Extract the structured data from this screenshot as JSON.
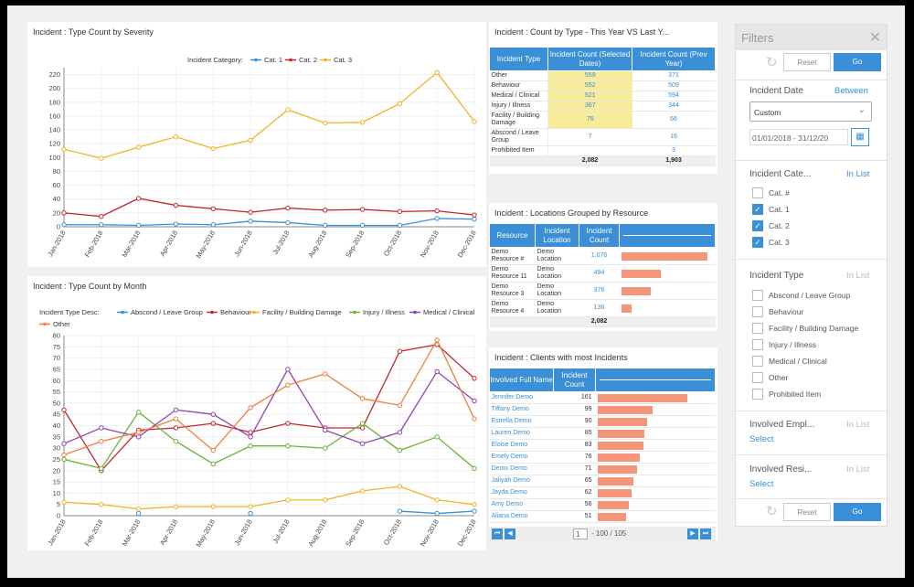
{
  "chart1": {
    "title": "Incident : Type Count by Severity",
    "legend_prefix": "Incident Category:"
  },
  "chart2": {
    "title": "Incident : Type Count by Month",
    "legend_prefix": "Incident Type Desc:"
  },
  "chart_data": [
    {
      "type": "line",
      "title": "Incident : Type Count by Severity",
      "legend_title": "Incident Category:",
      "categories": [
        "Jan-2018",
        "Feb-2018",
        "Mar-2018",
        "Apr-2018",
        "May-2018",
        "Jun-2018",
        "Jul-2018",
        "Aug-2018",
        "Sep-2018",
        "Oct-2018",
        "Nov-2018",
        "Dec-2018"
      ],
      "ylim": [
        0,
        230
      ],
      "yticks": [
        0,
        20,
        40,
        60,
        80,
        100,
        120,
        140,
        160,
        180,
        200,
        220
      ],
      "legend_position": "top-center",
      "grid": true,
      "series": [
        {
          "name": "Cat. 1",
          "color": "#3a8fd6",
          "values": [
            3,
            3,
            2,
            4,
            3,
            8,
            6,
            2,
            2,
            2,
            12,
            11
          ]
        },
        {
          "name": "Cat. 2",
          "color": "#c0282e",
          "values": [
            20,
            15,
            41,
            31,
            26,
            21,
            27,
            24,
            25,
            22,
            23,
            17
          ]
        },
        {
          "name": "Cat. 3",
          "color": "#f0b323",
          "values": [
            112,
            99,
            115,
            130,
            113,
            125,
            169,
            150,
            151,
            178,
            223,
            152
          ]
        }
      ]
    },
    {
      "type": "line",
      "title": "Incident : Type Count by Month",
      "legend_title": "Incident Type Desc:",
      "categories": [
        "Jan-2018",
        "Feb-2018",
        "Mar-2018",
        "Apr-2018",
        "May-2018",
        "Jun-2018",
        "Jul-2018",
        "Aug-2018",
        "Sep-2018",
        "Oct-2018",
        "Nov-2018",
        "Dec-2018"
      ],
      "ylim": [
        0,
        80
      ],
      "yticks": [
        0,
        5,
        10,
        15,
        20,
        25,
        30,
        35,
        40,
        45,
        50,
        55,
        60,
        65,
        70,
        75,
        80
      ],
      "legend_position": "top-left",
      "grid": true,
      "series": [
        {
          "name": "Abscond / Leave Group",
          "color": "#3a8fd6",
          "values": [
            null,
            null,
            1,
            null,
            null,
            1,
            null,
            null,
            null,
            2,
            1,
            2
          ]
        },
        {
          "name": "Behaviour",
          "color": "#c0282e",
          "values": [
            47,
            20,
            38,
            39,
            41,
            37,
            41,
            39,
            39,
            73,
            76,
            61
          ]
        },
        {
          "name": "Facility / Building Damage",
          "color": "#f0b323",
          "values": [
            6,
            5,
            3,
            4,
            4,
            4,
            7,
            7,
            11,
            13,
            7,
            5
          ]
        },
        {
          "name": "Injury / Illness",
          "color": "#6ab33a",
          "values": [
            25,
            21,
            46,
            33,
            23,
            31,
            31,
            30,
            41,
            29,
            35,
            21
          ]
        },
        {
          "name": "Medical / Clinical",
          "color": "#8e44ad",
          "values": [
            32,
            39,
            35,
            47,
            45,
            35,
            65,
            38,
            32,
            37,
            64,
            51
          ]
        },
        {
          "name": "Other",
          "color": "#f07f3c",
          "values": [
            27,
            33,
            37,
            43,
            29,
            48,
            58,
            63,
            52,
            49,
            78,
            43
          ]
        }
      ]
    },
    {
      "type": "table",
      "title": "Incident : Count by Type - This Year VS Last Y...",
      "columns": [
        "Incident Type",
        "Incident Count (Selected Dates)",
        "Incident Count (Prev Year)"
      ],
      "rows": [
        [
          "Other",
          "559",
          "371"
        ],
        [
          "Behaviour",
          "552",
          "509"
        ],
        [
          "Medical / Clinical",
          "521",
          "594"
        ],
        [
          "Injury / Illness",
          "367",
          "344"
        ],
        [
          "Facility / Building Damage",
          "76",
          "66"
        ],
        [
          "Abscond / Leave Group",
          "7",
          "16"
        ],
        [
          "Prohibited Item",
          "",
          "3"
        ]
      ],
      "totals": [
        "",
        "2,082",
        "1,903"
      ]
    },
    {
      "type": "bar",
      "title": "Incident : Locations Grouped by Resource",
      "columns": [
        "Resource",
        "Incident Location",
        "Incident Count"
      ],
      "rows": [
        {
          "resource": "Demo Resource #",
          "location": "Demo Location",
          "count": "1,076",
          "value": 1076
        },
        {
          "resource": "Demo Resource 11",
          "location": "Demo Location",
          "count": "494",
          "value": 494
        },
        {
          "resource": "Demo Resource 3",
          "location": "Demo Location",
          "count": "376",
          "value": 376
        },
        {
          "resource": "Demo Resource 4",
          "location": "Demo Location",
          "count": "136",
          "value": 136
        }
      ],
      "total": "2,082"
    },
    {
      "type": "bar",
      "title": "Incident : Clients with most Incidents",
      "columns": [
        "Involved Full Name",
        "Incident Count"
      ],
      "rows": [
        {
          "name": "Jennifer Demo",
          "value": 161
        },
        {
          "name": "Tiffany Demo",
          "value": 99
        },
        {
          "name": "Estrella Demo",
          "value": 90
        },
        {
          "name": "Lauren Demo",
          "value": 85
        },
        {
          "name": "Eloise Demo",
          "value": 83
        },
        {
          "name": "Emely Demo",
          "value": 76
        },
        {
          "name": "Demo Demo",
          "value": 71
        },
        {
          "name": "Jaliyah Demo",
          "value": 65
        },
        {
          "name": "Jayda Demo",
          "value": 62
        },
        {
          "name": "Amy Demo",
          "value": 56
        },
        {
          "name": "Aliana Demo",
          "value": 51
        }
      ]
    }
  ],
  "table1": {
    "title": "Incident : Count by Type - This Year VS Last Y...",
    "h1": "Incident Type",
    "h2": "Incident Count (Selected Dates)",
    "h3": "Incident Count (Prev Year)"
  },
  "table2": {
    "title": "Incident : Locations Grouped by Resource",
    "h1": "Resource",
    "h2": "Incident Location",
    "h3": "Incident Count"
  },
  "table3": {
    "title": "Incident : Clients with most Incidents",
    "h1": "Involved Full Name",
    "h2": "Incident Count",
    "pager": {
      "page": "1",
      "range": "- 100 / 105"
    }
  },
  "filters": {
    "title": "Filters",
    "reset": "Reset",
    "go": "Go",
    "date": {
      "label": "Incident Date",
      "mode": "Between",
      "select": "Custom",
      "range": "01/01/2018 - 31/12/20"
    },
    "category": {
      "label": "Incident Cate...",
      "mode": "In List",
      "options": [
        {
          "label": "Cat. #",
          "checked": false
        },
        {
          "label": "Cat. 1",
          "checked": true
        },
        {
          "label": "Cat. 2",
          "checked": true
        },
        {
          "label": "Cat. 3",
          "checked": true
        }
      ]
    },
    "type": {
      "label": "Incident Type",
      "mode": "In List",
      "options": [
        "Abscond / Leave Group",
        "Behaviour",
        "Facility / Building Damage",
        "Injury / Illness",
        "Medical / Clinical",
        "Other",
        "Prohibited Item"
      ]
    },
    "employee": {
      "label": "Involved Empl...",
      "mode": "In List",
      "select": "Select"
    },
    "resident": {
      "label": "Involved Resi...",
      "mode": "In List",
      "select": "Select"
    }
  }
}
